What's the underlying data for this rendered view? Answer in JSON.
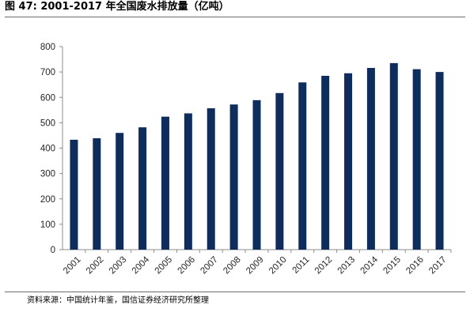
{
  "figure": {
    "title": "图 47:  2001-2017 年全国废水排放量（亿吨）",
    "source": "资料来源：中国统计年鉴，国信证券经济研究所整理"
  },
  "chart_data": {
    "type": "bar",
    "title": "图 47:  2001-2017 年全国废水排放量（亿吨）",
    "xlabel": "",
    "ylabel": "",
    "categories": [
      "2001",
      "2002",
      "2003",
      "2004",
      "2005",
      "2006",
      "2007",
      "2008",
      "2009",
      "2010",
      "2011",
      "2012",
      "2013",
      "2014",
      "2015",
      "2016",
      "2017"
    ],
    "values": [
      433,
      439,
      460,
      482,
      524,
      537,
      557,
      572,
      589,
      617,
      659,
      685,
      695,
      716,
      735,
      711,
      700
    ],
    "ylim": [
      0,
      800
    ],
    "yticks": [
      "0",
      "100",
      "200",
      "300",
      "400",
      "500",
      "600",
      "700",
      "800"
    ],
    "grid": false,
    "legend": "none",
    "bar_color": "#0d2d5e",
    "axis_color": "#8c8c8c"
  }
}
